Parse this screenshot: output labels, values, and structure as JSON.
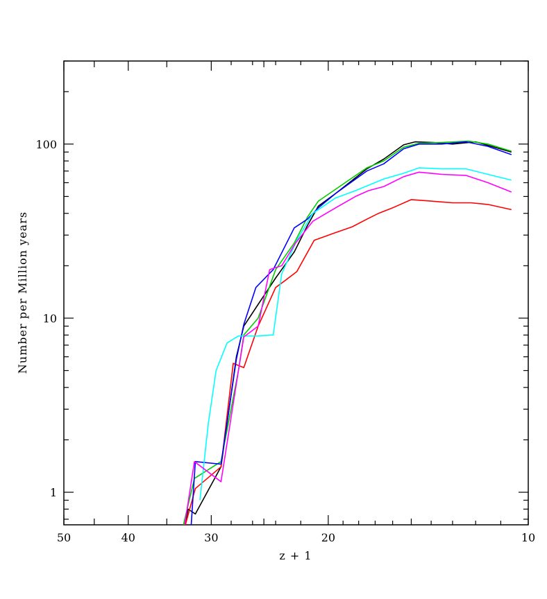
{
  "chart_data": {
    "type": "line",
    "xlabel": "z + 1",
    "ylabel": "Number per Million years",
    "x_scale": "log",
    "y_scale": "log",
    "xlim": [
      50,
      10
    ],
    "ylim": [
      0.65,
      300
    ],
    "x_ticks": [
      50,
      40,
      30,
      20,
      10
    ],
    "y_ticks": [
      1,
      10,
      100
    ],
    "grid": false,
    "legend": "none",
    "series": [
      {
        "color": "#000000",
        "points": [
          [
            33,
            0.6
          ],
          [
            32.5,
            0.8
          ],
          [
            31.7,
            0.75
          ],
          [
            29,
            1.4
          ],
          [
            27.5,
            6
          ],
          [
            26.8,
            9
          ],
          [
            25.5,
            12
          ],
          [
            24,
            17
          ],
          [
            22.5,
            24
          ],
          [
            21.5,
            34
          ],
          [
            20.7,
            44
          ],
          [
            19.5,
            52
          ],
          [
            17.5,
            72
          ],
          [
            16.5,
            82
          ],
          [
            15.4,
            99
          ],
          [
            14.8,
            103
          ],
          [
            13.9,
            102
          ],
          [
            13,
            100
          ],
          [
            12,
            103
          ],
          [
            10.6,
            90
          ]
        ]
      },
      {
        "color": "#ff0000",
        "points": [
          [
            33,
            0.6
          ],
          [
            31.7,
            1.05
          ],
          [
            29,
            1.4
          ],
          [
            27.8,
            5.5
          ],
          [
            26.8,
            5.2
          ],
          [
            25.5,
            9
          ],
          [
            24,
            15
          ],
          [
            23.2,
            16.5
          ],
          [
            22.3,
            18.5
          ],
          [
            21,
            28
          ],
          [
            19.5,
            31
          ],
          [
            18.4,
            33.5
          ],
          [
            17.5,
            37
          ],
          [
            16.8,
            40
          ],
          [
            16,
            43
          ],
          [
            15,
            48
          ],
          [
            14,
            47
          ],
          [
            13,
            46
          ],
          [
            12.2,
            46
          ],
          [
            11.5,
            45
          ],
          [
            10.6,
            42
          ]
        ]
      },
      {
        "color": "#00cc00",
        "points": [
          [
            33.2,
            0.6
          ],
          [
            31.8,
            1.2
          ],
          [
            29,
            1.5
          ],
          [
            27.3,
            5
          ],
          [
            26.8,
            8
          ],
          [
            25.5,
            10
          ],
          [
            24,
            19
          ],
          [
            22.5,
            27
          ],
          [
            21.5,
            38
          ],
          [
            20.7,
            47
          ],
          [
            19.5,
            55
          ],
          [
            17.5,
            73
          ],
          [
            16.5,
            80
          ],
          [
            15.4,
            96
          ],
          [
            14.6,
            101
          ],
          [
            13.5,
            102
          ],
          [
            12.3,
            104
          ],
          [
            11.5,
            100
          ],
          [
            10.6,
            91
          ]
        ]
      },
      {
        "color": "#0000ff",
        "points": [
          [
            32.2,
            0.6
          ],
          [
            31.7,
            1.5
          ],
          [
            29,
            1.45
          ],
          [
            27.5,
            5.8
          ],
          [
            26.8,
            9.2
          ],
          [
            25.7,
            15
          ],
          [
            24.2,
            19
          ],
          [
            22.5,
            33
          ],
          [
            21.5,
            37
          ],
          [
            20.7,
            43
          ],
          [
            19.5,
            52
          ],
          [
            17.5,
            70
          ],
          [
            16.5,
            77
          ],
          [
            15.4,
            94
          ],
          [
            14.6,
            100
          ],
          [
            13.5,
            100
          ],
          [
            12.4,
            103
          ],
          [
            11.5,
            97
          ],
          [
            10.6,
            87
          ]
        ]
      },
      {
        "color": "#00ffff",
        "points": [
          [
            31.2,
            0.9
          ],
          [
            30.3,
            2.5
          ],
          [
            29.5,
            5
          ],
          [
            28.4,
            7.2
          ],
          [
            27.3,
            7.9
          ],
          [
            25.6,
            7.9
          ],
          [
            24.2,
            8
          ],
          [
            23.5,
            18
          ],
          [
            22.3,
            28
          ],
          [
            21.1,
            40
          ],
          [
            19.5,
            49
          ],
          [
            18.2,
            54
          ],
          [
            17.4,
            58
          ],
          [
            16.5,
            63
          ],
          [
            15.4,
            68
          ],
          [
            14.6,
            73
          ],
          [
            13.5,
            72
          ],
          [
            12.4,
            72
          ],
          [
            11.5,
            67
          ],
          [
            10.6,
            62
          ]
        ]
      },
      {
        "color": "#ff00ff",
        "points": [
          [
            33,
            0.6
          ],
          [
            31.8,
            1.5
          ],
          [
            29,
            1.15
          ],
          [
            27.5,
            4.2
          ],
          [
            26.8,
            7.8
          ],
          [
            25.5,
            9
          ],
          [
            24.5,
            19
          ],
          [
            23.5,
            20
          ],
          [
            22.4,
            27
          ],
          [
            21.1,
            36
          ],
          [
            19.5,
            43
          ],
          [
            18.2,
            50
          ],
          [
            17.4,
            54
          ],
          [
            16.5,
            57
          ],
          [
            15.4,
            65
          ],
          [
            14.6,
            69
          ],
          [
            13.5,
            67
          ],
          [
            12.4,
            66
          ],
          [
            11.5,
            60
          ],
          [
            10.6,
            53
          ]
        ]
      }
    ]
  }
}
